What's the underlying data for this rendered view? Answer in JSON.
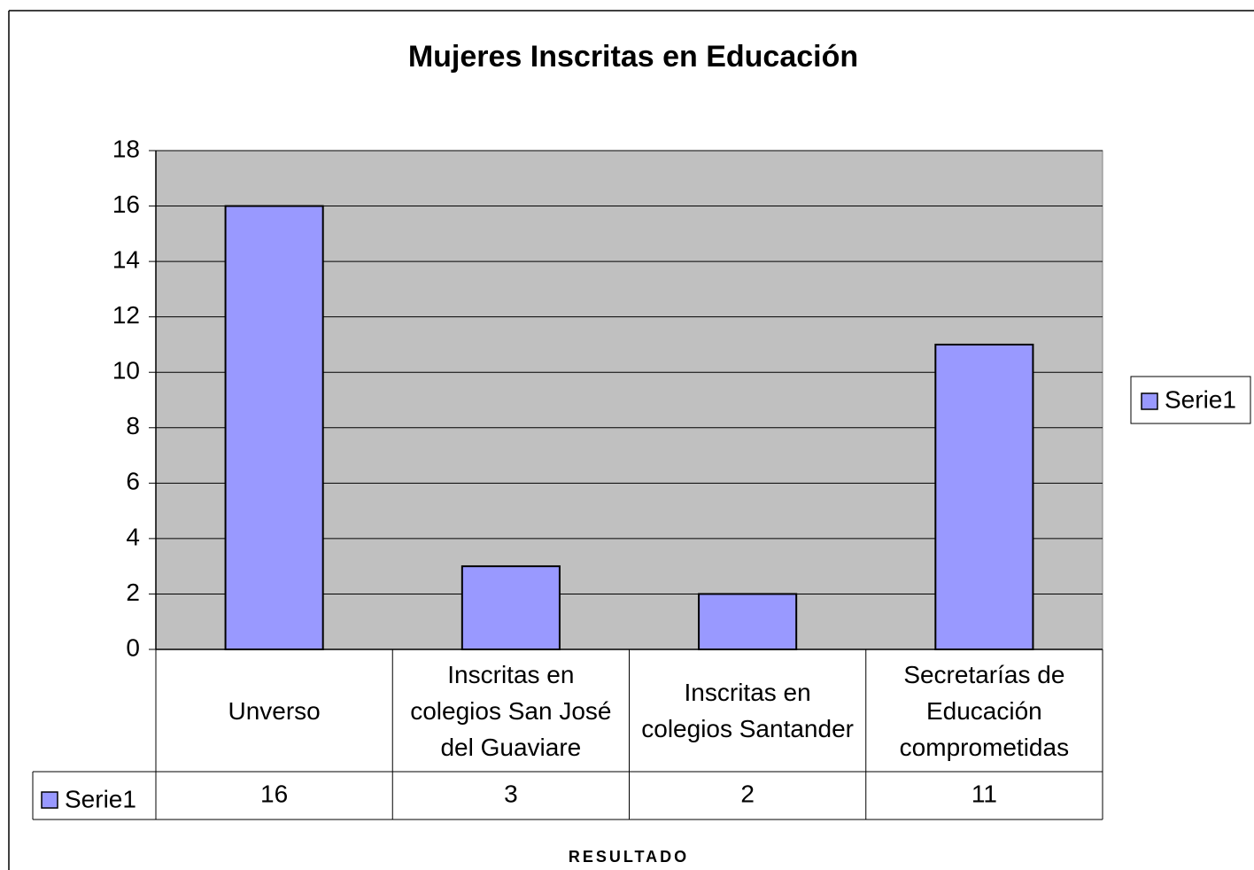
{
  "chart_data": {
    "type": "bar",
    "title": "Mujeres Inscritas en Educación",
    "x_label": "RESULTADO",
    "categories": [
      "Unverso",
      "Inscritas en colegios San José del Guaviare",
      "Inscritas en colegios Santander",
      "Secretarías de Educación comprometidas"
    ],
    "series": [
      {
        "name": "Serie1",
        "color": "#9999ff",
        "values": [
          16,
          3,
          2,
          11
        ]
      }
    ],
    "ylim": [
      0,
      18
    ],
    "yticks": [
      0,
      2,
      4,
      6,
      8,
      10,
      12,
      14,
      16,
      18
    ],
    "grid": true,
    "legend": "right",
    "data_table": true
  }
}
